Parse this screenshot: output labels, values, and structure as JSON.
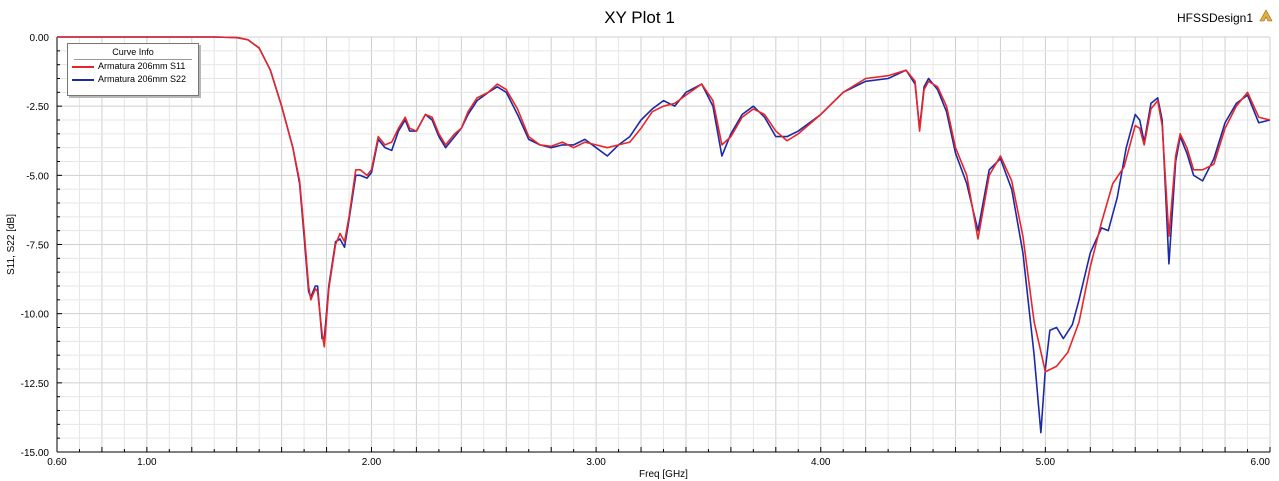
{
  "header": {
    "title": "XY Plot 1",
    "design_name": "HFSSDesign1",
    "design_icon": "ansys-logo-icon"
  },
  "legend": {
    "title": "Curve Info",
    "items": [
      {
        "label": "Armatura 206mm S11",
        "color": "#e8262a"
      },
      {
        "label": "Armatura 206mm S22",
        "color": "#1b2aa8"
      }
    ]
  },
  "chart_data": {
    "type": "line",
    "title": "XY Plot 1",
    "xlabel": "Freq [GHz]",
    "ylabel": "S11, S22 [dB]",
    "xlim": [
      0.6,
      6.0
    ],
    "ylim": [
      -15.0,
      0.0
    ],
    "x_tick_labels": [
      "0.60",
      "1.00",
      "2.00",
      "3.00",
      "4.00",
      "5.00",
      "6.00"
    ],
    "y_tick_labels": [
      "0.00",
      "-2.50",
      "-5.00",
      "-7.50",
      "-10.00",
      "-12.50",
      "-15.00"
    ],
    "grid": true,
    "legend_position": "top-left",
    "series": [
      {
        "name": "Armatura 206mm S11",
        "color": "#e8262a",
        "points": [
          [
            0.6,
            0
          ],
          [
            1.0,
            0
          ],
          [
            1.3,
            0
          ],
          [
            1.4,
            -0.02
          ],
          [
            1.45,
            -0.1
          ],
          [
            1.5,
            -0.4
          ],
          [
            1.55,
            -1.2
          ],
          [
            1.6,
            -2.5
          ],
          [
            1.65,
            -4.0
          ],
          [
            1.68,
            -5.2
          ],
          [
            1.7,
            -7.0
          ],
          [
            1.72,
            -9.0
          ],
          [
            1.73,
            -9.5
          ],
          [
            1.75,
            -9.1
          ],
          [
            1.76,
            -9.2
          ],
          [
            1.78,
            -10.7
          ],
          [
            1.79,
            -11.2
          ],
          [
            1.81,
            -9.1
          ],
          [
            1.84,
            -7.5
          ],
          [
            1.86,
            -7.1
          ],
          [
            1.88,
            -7.4
          ],
          [
            1.9,
            -6.5
          ],
          [
            1.93,
            -4.8
          ],
          [
            1.95,
            -4.8
          ],
          [
            1.98,
            -5.0
          ],
          [
            2.0,
            -4.8
          ],
          [
            2.03,
            -3.6
          ],
          [
            2.06,
            -3.9
          ],
          [
            2.09,
            -3.8
          ],
          [
            2.12,
            -3.3
          ],
          [
            2.15,
            -2.9
          ],
          [
            2.17,
            -3.3
          ],
          [
            2.2,
            -3.4
          ],
          [
            2.24,
            -2.8
          ],
          [
            2.27,
            -2.9
          ],
          [
            2.3,
            -3.5
          ],
          [
            2.33,
            -3.9
          ],
          [
            2.37,
            -3.5
          ],
          [
            2.4,
            -3.3
          ],
          [
            2.43,
            -2.7
          ],
          [
            2.47,
            -2.2
          ],
          [
            2.52,
            -2.0
          ],
          [
            2.56,
            -1.7
          ],
          [
            2.6,
            -1.9
          ],
          [
            2.65,
            -2.6
          ],
          [
            2.7,
            -3.6
          ],
          [
            2.75,
            -3.9
          ],
          [
            2.8,
            -3.95
          ],
          [
            2.85,
            -3.8
          ],
          [
            2.9,
            -4.0
          ],
          [
            2.95,
            -3.8
          ],
          [
            3.0,
            -3.9
          ],
          [
            3.05,
            -4.0
          ],
          [
            3.1,
            -3.9
          ],
          [
            3.15,
            -3.8
          ],
          [
            3.2,
            -3.3
          ],
          [
            3.25,
            -2.7
          ],
          [
            3.3,
            -2.5
          ],
          [
            3.35,
            -2.4
          ],
          [
            3.4,
            -2.1
          ],
          [
            3.47,
            -1.7
          ],
          [
            3.52,
            -2.3
          ],
          [
            3.56,
            -3.9
          ],
          [
            3.6,
            -3.6
          ],
          [
            3.65,
            -2.9
          ],
          [
            3.7,
            -2.6
          ],
          [
            3.75,
            -2.8
          ],
          [
            3.8,
            -3.4
          ],
          [
            3.85,
            -3.75
          ],
          [
            3.9,
            -3.5
          ],
          [
            4.0,
            -2.8
          ],
          [
            4.1,
            -2.0
          ],
          [
            4.2,
            -1.5
          ],
          [
            4.3,
            -1.4
          ],
          [
            4.38,
            -1.2
          ],
          [
            4.42,
            -1.6
          ],
          [
            4.44,
            -3.4
          ],
          [
            4.46,
            -1.9
          ],
          [
            4.48,
            -1.6
          ],
          [
            4.52,
            -1.8
          ],
          [
            4.56,
            -2.5
          ],
          [
            4.6,
            -4.0
          ],
          [
            4.65,
            -5.0
          ],
          [
            4.7,
            -7.3
          ],
          [
            4.75,
            -5.0
          ],
          [
            4.8,
            -4.3
          ],
          [
            4.85,
            -5.2
          ],
          [
            4.9,
            -7.2
          ],
          [
            4.95,
            -10.3
          ],
          [
            5.0,
            -12.1
          ],
          [
            5.05,
            -11.9
          ],
          [
            5.1,
            -11.4
          ],
          [
            5.15,
            -10.3
          ],
          [
            5.2,
            -8.3
          ],
          [
            5.25,
            -6.7
          ],
          [
            5.3,
            -5.3
          ],
          [
            5.35,
            -4.7
          ],
          [
            5.4,
            -3.2
          ],
          [
            5.42,
            -3.3
          ],
          [
            5.44,
            -3.9
          ],
          [
            5.47,
            -2.6
          ],
          [
            5.5,
            -2.3
          ],
          [
            5.52,
            -3.2
          ],
          [
            5.55,
            -7.2
          ],
          [
            5.58,
            -4.3
          ],
          [
            5.6,
            -3.5
          ],
          [
            5.63,
            -4.0
          ],
          [
            5.66,
            -4.8
          ],
          [
            5.7,
            -4.8
          ],
          [
            5.75,
            -4.6
          ],
          [
            5.8,
            -3.3
          ],
          [
            5.85,
            -2.5
          ],
          [
            5.9,
            -2.0
          ],
          [
            5.95,
            -2.9
          ],
          [
            6.0,
            -3.0
          ]
        ]
      },
      {
        "name": "Armatura 206mm S22",
        "color": "#1b2aa8",
        "points": [
          [
            0.6,
            0
          ],
          [
            1.0,
            0
          ],
          [
            1.3,
            0
          ],
          [
            1.4,
            -0.02
          ],
          [
            1.45,
            -0.1
          ],
          [
            1.5,
            -0.4
          ],
          [
            1.55,
            -1.2
          ],
          [
            1.6,
            -2.5
          ],
          [
            1.65,
            -4.0
          ],
          [
            1.68,
            -5.3
          ],
          [
            1.7,
            -7.2
          ],
          [
            1.72,
            -9.2
          ],
          [
            1.73,
            -9.4
          ],
          [
            1.75,
            -9.0
          ],
          [
            1.76,
            -9.0
          ],
          [
            1.78,
            -10.9
          ],
          [
            1.79,
            -10.9
          ],
          [
            1.81,
            -9.0
          ],
          [
            1.84,
            -7.4
          ],
          [
            1.86,
            -7.3
          ],
          [
            1.88,
            -7.6
          ],
          [
            1.9,
            -6.6
          ],
          [
            1.93,
            -5.0
          ],
          [
            1.95,
            -5.0
          ],
          [
            1.98,
            -5.1
          ],
          [
            2.0,
            -4.9
          ],
          [
            2.03,
            -3.7
          ],
          [
            2.06,
            -4.0
          ],
          [
            2.09,
            -4.1
          ],
          [
            2.12,
            -3.4
          ],
          [
            2.15,
            -3.0
          ],
          [
            2.17,
            -3.4
          ],
          [
            2.2,
            -3.4
          ],
          [
            2.24,
            -2.8
          ],
          [
            2.27,
            -3.0
          ],
          [
            2.3,
            -3.6
          ],
          [
            2.33,
            -4.0
          ],
          [
            2.37,
            -3.6
          ],
          [
            2.4,
            -3.3
          ],
          [
            2.43,
            -2.8
          ],
          [
            2.47,
            -2.3
          ],
          [
            2.52,
            -2.0
          ],
          [
            2.56,
            -1.8
          ],
          [
            2.6,
            -2.0
          ],
          [
            2.65,
            -2.8
          ],
          [
            2.7,
            -3.7
          ],
          [
            2.75,
            -3.9
          ],
          [
            2.8,
            -4.0
          ],
          [
            2.85,
            -3.9
          ],
          [
            2.9,
            -3.9
          ],
          [
            2.95,
            -3.7
          ],
          [
            3.0,
            -4.0
          ],
          [
            3.05,
            -4.3
          ],
          [
            3.1,
            -3.9
          ],
          [
            3.15,
            -3.6
          ],
          [
            3.2,
            -3.0
          ],
          [
            3.25,
            -2.6
          ],
          [
            3.3,
            -2.3
          ],
          [
            3.35,
            -2.5
          ],
          [
            3.4,
            -2.0
          ],
          [
            3.47,
            -1.7
          ],
          [
            3.52,
            -2.5
          ],
          [
            3.56,
            -4.3
          ],
          [
            3.6,
            -3.5
          ],
          [
            3.65,
            -2.8
          ],
          [
            3.7,
            -2.5
          ],
          [
            3.75,
            -2.9
          ],
          [
            3.8,
            -3.6
          ],
          [
            3.85,
            -3.6
          ],
          [
            3.9,
            -3.4
          ],
          [
            4.0,
            -2.8
          ],
          [
            4.1,
            -2.0
          ],
          [
            4.2,
            -1.6
          ],
          [
            4.3,
            -1.5
          ],
          [
            4.38,
            -1.2
          ],
          [
            4.42,
            -1.7
          ],
          [
            4.44,
            -3.3
          ],
          [
            4.46,
            -1.8
          ],
          [
            4.48,
            -1.5
          ],
          [
            4.52,
            -1.9
          ],
          [
            4.56,
            -2.7
          ],
          [
            4.6,
            -4.2
          ],
          [
            4.65,
            -5.3
          ],
          [
            4.7,
            -7.0
          ],
          [
            4.75,
            -4.8
          ],
          [
            4.8,
            -4.4
          ],
          [
            4.85,
            -5.5
          ],
          [
            4.9,
            -7.8
          ],
          [
            4.95,
            -11.5
          ],
          [
            4.98,
            -14.3
          ],
          [
            5.0,
            -12.0
          ],
          [
            5.02,
            -10.6
          ],
          [
            5.05,
            -10.5
          ],
          [
            5.08,
            -10.9
          ],
          [
            5.12,
            -10.4
          ],
          [
            5.15,
            -9.5
          ],
          [
            5.2,
            -7.8
          ],
          [
            5.25,
            -6.9
          ],
          [
            5.28,
            -7.0
          ],
          [
            5.32,
            -5.8
          ],
          [
            5.36,
            -4.0
          ],
          [
            5.4,
            -2.8
          ],
          [
            5.42,
            -3.0
          ],
          [
            5.44,
            -3.8
          ],
          [
            5.47,
            -2.4
          ],
          [
            5.5,
            -2.2
          ],
          [
            5.52,
            -3.0
          ],
          [
            5.55,
            -8.2
          ],
          [
            5.58,
            -4.5
          ],
          [
            5.6,
            -3.6
          ],
          [
            5.63,
            -4.2
          ],
          [
            5.66,
            -5.0
          ],
          [
            5.7,
            -5.2
          ],
          [
            5.75,
            -4.4
          ],
          [
            5.8,
            -3.1
          ],
          [
            5.85,
            -2.4
          ],
          [
            5.9,
            -2.1
          ],
          [
            5.95,
            -3.1
          ],
          [
            6.0,
            -3.0
          ]
        ]
      }
    ]
  }
}
